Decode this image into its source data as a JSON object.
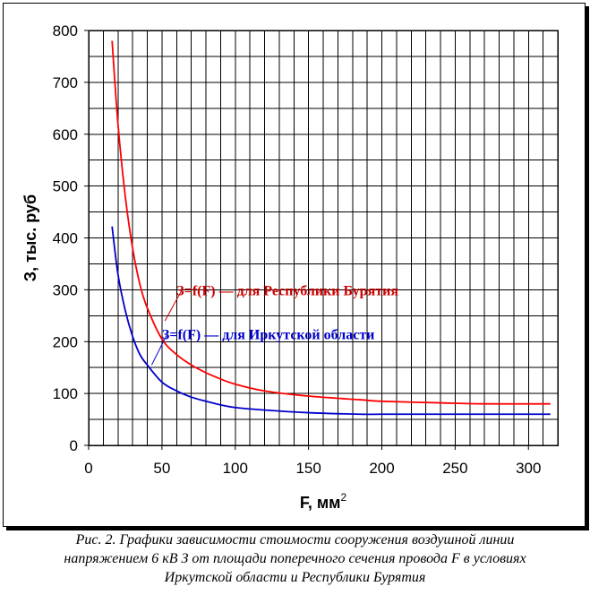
{
  "chart_data": {
    "type": "line",
    "xlabel": "F, мм",
    "xlabel_sup": "2",
    "ylabel": "З, тыс. руб",
    "xlim": [
      0,
      320
    ],
    "ylim": [
      0,
      800
    ],
    "x_ticks": [
      0,
      50,
      100,
      150,
      200,
      250,
      300
    ],
    "y_ticks": [
      0,
      100,
      200,
      300,
      400,
      500,
      600,
      700,
      800
    ],
    "x_minor_step": 10,
    "y_minor_step": 50,
    "grid": true,
    "series": [
      {
        "name": "З=f(F) — для Республики Бурятия",
        "color": "#ff0000",
        "x": [
          16,
          20,
          25,
          30,
          35,
          40,
          50,
          60,
          70,
          80,
          90,
          100,
          120,
          150,
          185,
          200,
          240,
          270,
          315
        ],
        "y": [
          780,
          620,
          480,
          380,
          310,
          265,
          205,
          175,
          155,
          140,
          128,
          118,
          105,
          95,
          88,
          85,
          82,
          80,
          80
        ]
      },
      {
        "name": "З=f(F) — для Иркутской области",
        "color": "#0000cc",
        "x": [
          16,
          20,
          25,
          30,
          35,
          40,
          50,
          60,
          70,
          80,
          90,
          100,
          120,
          150,
          185,
          200,
          240,
          270,
          315
        ],
        "y": [
          422,
          330,
          260,
          210,
          175,
          155,
          122,
          105,
          93,
          85,
          78,
          73,
          68,
          63,
          60,
          60,
          60,
          60,
          60
        ]
      }
    ],
    "annotations": [
      {
        "text": "З=f(F) — для Республики Бурятия",
        "color": "#cc0000",
        "x": 60,
        "y": 300,
        "arrow_to_x": 52,
        "arrow_to_y": 240
      },
      {
        "text": "З=f(F) — для Иркутской области",
        "color": "#0000cc",
        "x": 50,
        "y": 215,
        "arrow_to_x": 43,
        "arrow_to_y": 155
      }
    ]
  },
  "caption": {
    "line1": "Рис. 2. Графики зависимости стоимости сооружения воздушной линии",
    "line2": "напряжением 6 кВ  З от площади поперечного сечения провода F в условиях",
    "line3": "Иркутской области и Республики Бурятия"
  }
}
